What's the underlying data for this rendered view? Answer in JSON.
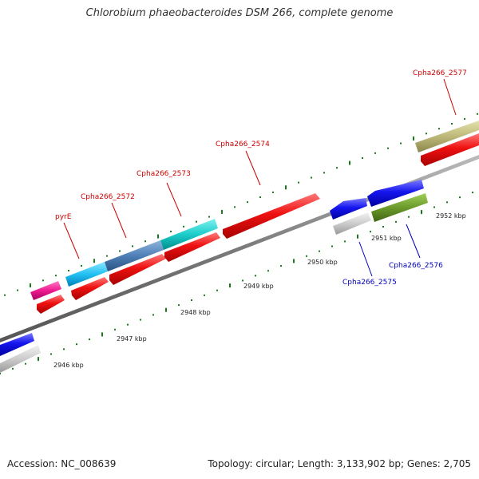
{
  "title": "Chlorobium phaeobacteroides DSM 266, complete genome",
  "footer": {
    "accession": "Accession: NC_008639",
    "topology": "Topology: circular; Length: 3,133,902 bp; Genes: 2,705"
  },
  "colors": {
    "forward_label": "#cc0000",
    "reverse_label": "#0000bb",
    "tick": "#1a7a1a",
    "backbone": "#8c8c8c"
  },
  "ticks": [
    {
      "label": "2946 kbp"
    },
    {
      "label": "2947 kbp"
    },
    {
      "label": "2948 kbp"
    },
    {
      "label": "2949 kbp"
    },
    {
      "label": "2950 kbp"
    },
    {
      "label": "2951 kbp"
    },
    {
      "label": "2952 kbp"
    }
  ],
  "gene_labels": [
    {
      "name": "pyrE",
      "strand": "forward"
    },
    {
      "name": "Cpha266_2572",
      "strand": "forward"
    },
    {
      "name": "Cpha266_2573",
      "strand": "forward"
    },
    {
      "name": "Cpha266_2574",
      "strand": "forward"
    },
    {
      "name": "Cpha266_2577",
      "strand": "forward"
    },
    {
      "name": "Cpha266_2575",
      "strand": "reverse"
    },
    {
      "name": "Cpha266_2576",
      "strand": "reverse"
    }
  ]
}
